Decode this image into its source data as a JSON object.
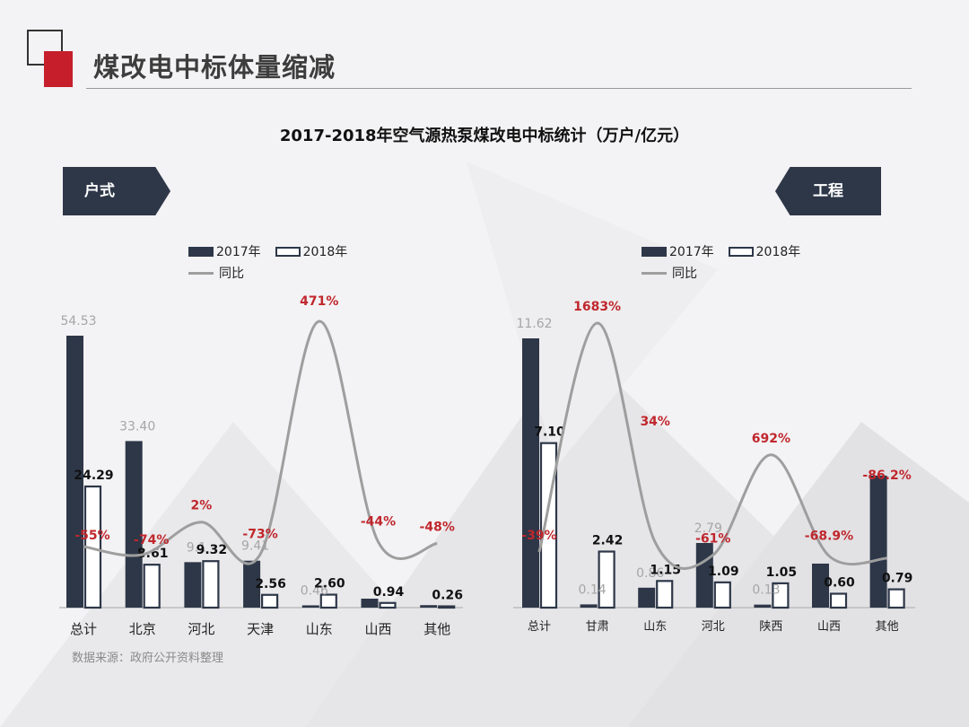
{
  "page": {
    "title": "煤改电中标体量缩减",
    "source": "数据来源：政府公开资料整理"
  },
  "chart_title": "2017-2018年空气源热泵煤改电中标统计（万户/亿元）",
  "legend": {
    "s2017": "2017年",
    "s2018": "2018年",
    "yoy": "同比"
  },
  "colors": {
    "dark": "#2d3748",
    "light": "#ffffff",
    "line": "#9e9e9e",
    "pct": "#c0272d"
  },
  "chart_data": [
    {
      "tag": "户式",
      "type": "bar",
      "categories": [
        "总计",
        "北京",
        "河北",
        "天津",
        "山东",
        "山西",
        "其他"
      ],
      "series": [
        {
          "name": "2017年",
          "values": [
            54.53,
            33.4,
            9.12,
            9.41,
            0.46,
            1.8,
            0.5
          ]
        },
        {
          "name": "2018年",
          "values": [
            24.29,
            8.61,
            9.32,
            2.56,
            2.6,
            0.94,
            0.26
          ]
        },
        {
          "name": "同比",
          "type": "line",
          "values": [
            -55,
            -74,
            2,
            -73,
            471,
            -44,
            -48
          ]
        }
      ],
      "labels_2017": [
        "54.53",
        "33.40",
        "9.1",
        "9.41",
        "0.46",
        "",
        ""
      ],
      "labels_2018": [
        "24.29",
        "8.61",
        "9.32",
        "2.56",
        "2.60",
        "0.94",
        "0.26"
      ],
      "labels_pct": [
        "-55%",
        "-74%",
        "2%",
        "-73%",
        "471%",
        "-44%",
        "-48%"
      ]
    },
    {
      "tag": "工程",
      "type": "bar",
      "categories": [
        "总计",
        "甘肃",
        "山东",
        "河北",
        "陕西",
        "山西",
        "其他"
      ],
      "series": [
        {
          "name": "2017年",
          "values": [
            11.62,
            0.14,
            0.86,
            2.79,
            0.13,
            1.9,
            5.7
          ]
        },
        {
          "name": "2018年",
          "values": [
            7.1,
            2.42,
            1.15,
            1.09,
            1.05,
            0.6,
            0.79
          ]
        },
        {
          "name": "同比",
          "type": "line",
          "values": [
            -39,
            1683,
            34,
            -61,
            692,
            -68.9,
            -86.2
          ]
        }
      ],
      "labels_2017": [
        "11.62",
        "0.14",
        "0.86",
        "2.79",
        "0.13",
        "",
        ""
      ],
      "labels_2018": [
        "7.10",
        "2.42",
        "1.15",
        "1.09",
        "1.05",
        "0.60",
        "0.79"
      ],
      "labels_pct": [
        "-39%",
        "1683%",
        "34%",
        "-61%",
        "692%",
        "-68.9%",
        "-86.2%"
      ]
    }
  ]
}
